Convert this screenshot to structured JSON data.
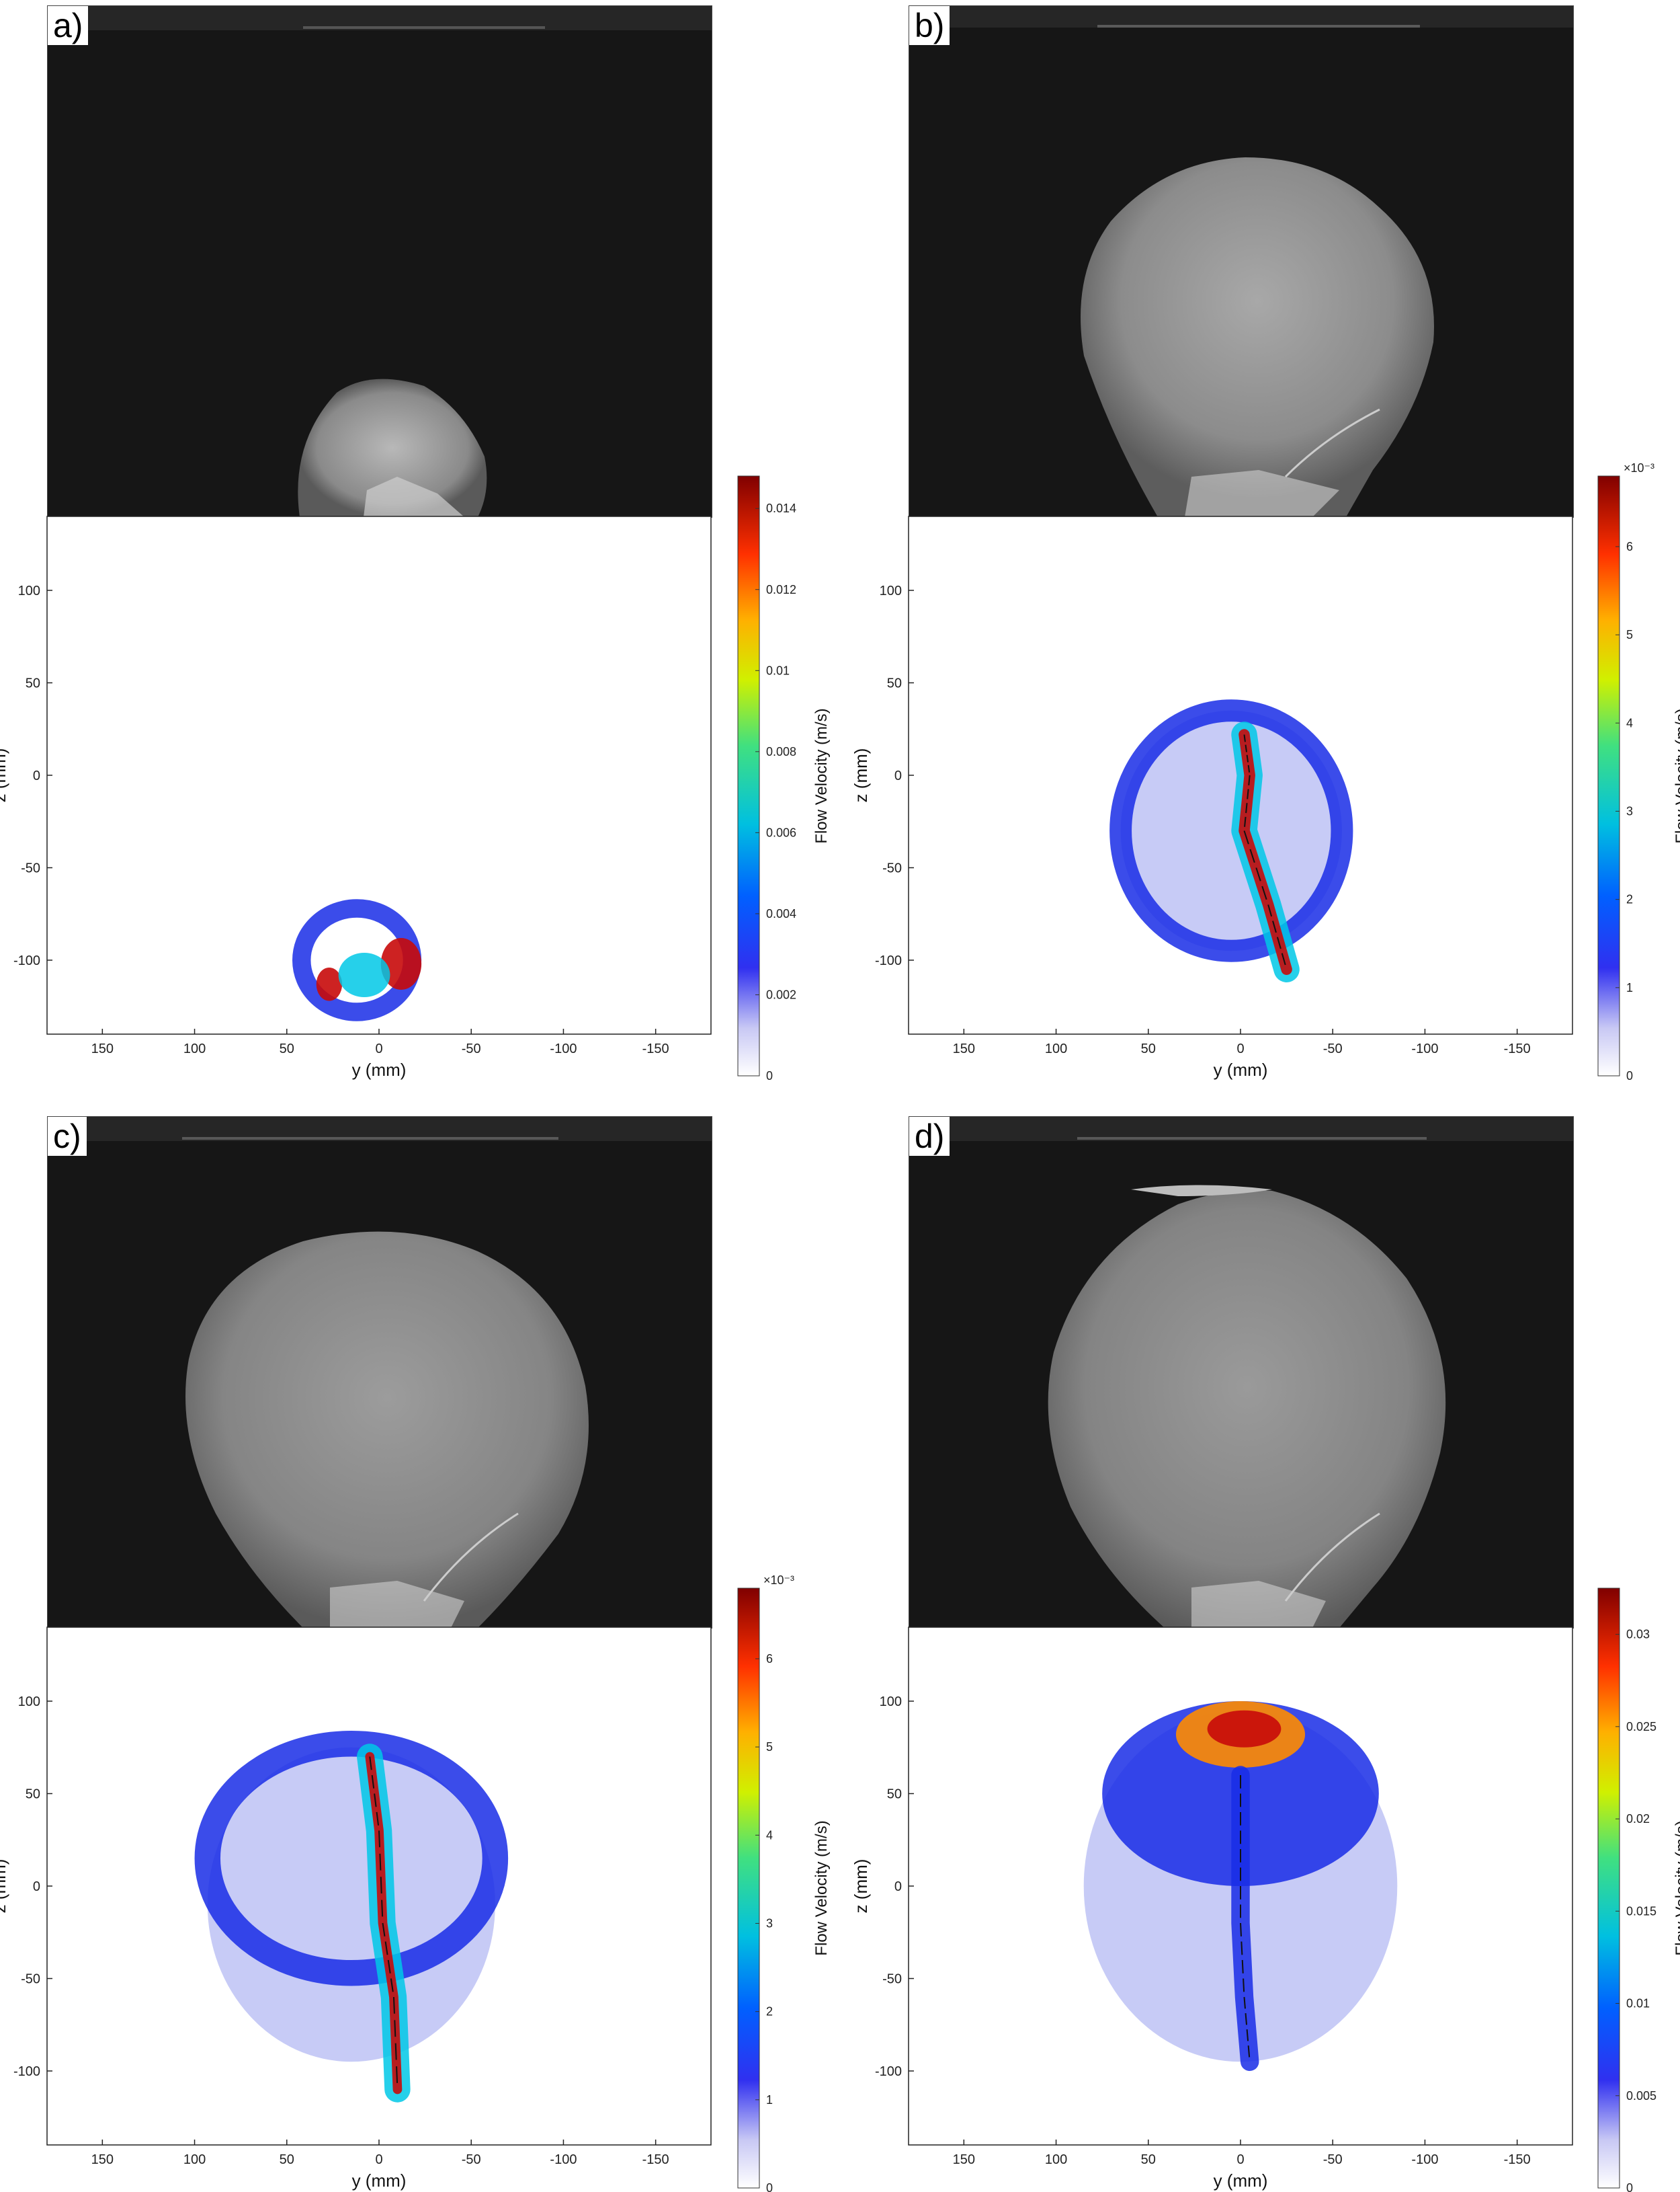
{
  "chart_data": [
    {
      "type": "heatmap",
      "panel_label": "a)",
      "xlabel": "y (mm)",
      "ylabel": "z (mm)",
      "x_ticks": [
        150,
        100,
        50,
        0,
        -50,
        -100,
        -150
      ],
      "y_ticks": [
        100,
        50,
        0,
        -50,
        -100
      ],
      "xlim": [
        180,
        -180
      ],
      "ylim": [
        -140,
        140
      ],
      "colorbar": {
        "label": "Flow Velocity (m/s)",
        "exponent": "",
        "ticks": [
          "0",
          "0.002",
          "0.004",
          "0.006",
          "0.008",
          "0.01",
          "0.012",
          "0.014"
        ],
        "tick_values": [
          0,
          0.002,
          0.004,
          0.006,
          0.008,
          0.01,
          0.012,
          0.014
        ],
        "range": [
          0,
          0.0148
        ]
      }
    },
    {
      "type": "heatmap",
      "panel_label": "b)",
      "xlabel": "y (mm)",
      "ylabel": "z (mm)",
      "x_ticks": [
        150,
        100,
        50,
        0,
        -50,
        -100,
        -150
      ],
      "y_ticks": [
        100,
        50,
        0,
        -50,
        -100
      ],
      "xlim": [
        180,
        -180
      ],
      "ylim": [
        -140,
        140
      ],
      "colorbar": {
        "label": "Flow Velocity (m/s)",
        "exponent": "×10⁻³",
        "ticks": [
          "0",
          "1",
          "2",
          "3",
          "4",
          "5",
          "6"
        ],
        "tick_values": [
          0,
          1,
          2,
          3,
          4,
          5,
          6
        ],
        "range": [
          0,
          6.8
        ]
      }
    },
    {
      "type": "heatmap",
      "panel_label": "c)",
      "xlabel": "y (mm)",
      "ylabel": "z (mm)",
      "x_ticks": [
        150,
        100,
        50,
        0,
        -50,
        -100,
        -150
      ],
      "y_ticks": [
        100,
        50,
        0,
        -50,
        -100
      ],
      "xlim": [
        180,
        -180
      ],
      "ylim": [
        -140,
        140
      ],
      "colorbar": {
        "label": "Flow Velocity (m/s)",
        "exponent": "×10⁻³",
        "ticks": [
          "0",
          "1",
          "2",
          "3",
          "4",
          "5",
          "6"
        ],
        "tick_values": [
          0,
          1,
          2,
          3,
          4,
          5,
          6
        ],
        "range": [
          0,
          6.8
        ]
      }
    },
    {
      "type": "heatmap",
      "panel_label": "d)",
      "xlabel": "y (mm)",
      "ylabel": "z (mm)",
      "x_ticks": [
        150,
        100,
        50,
        0,
        -50,
        -100,
        -150
      ],
      "y_ticks": [
        100,
        50,
        0,
        -50,
        -100
      ],
      "xlim": [
        180,
        -180
      ],
      "ylim": [
        -140,
        140
      ],
      "colorbar": {
        "label": "Flow Velocity (m/s)",
        "exponent": "",
        "ticks": [
          "0",
          "0.005",
          "0.01",
          "0.015",
          "0.02",
          "0.025",
          "0.03"
        ],
        "tick_values": [
          0,
          0.005,
          0.01,
          0.015,
          0.02,
          0.025,
          0.03
        ],
        "range": [
          0,
          0.0325
        ]
      }
    }
  ]
}
